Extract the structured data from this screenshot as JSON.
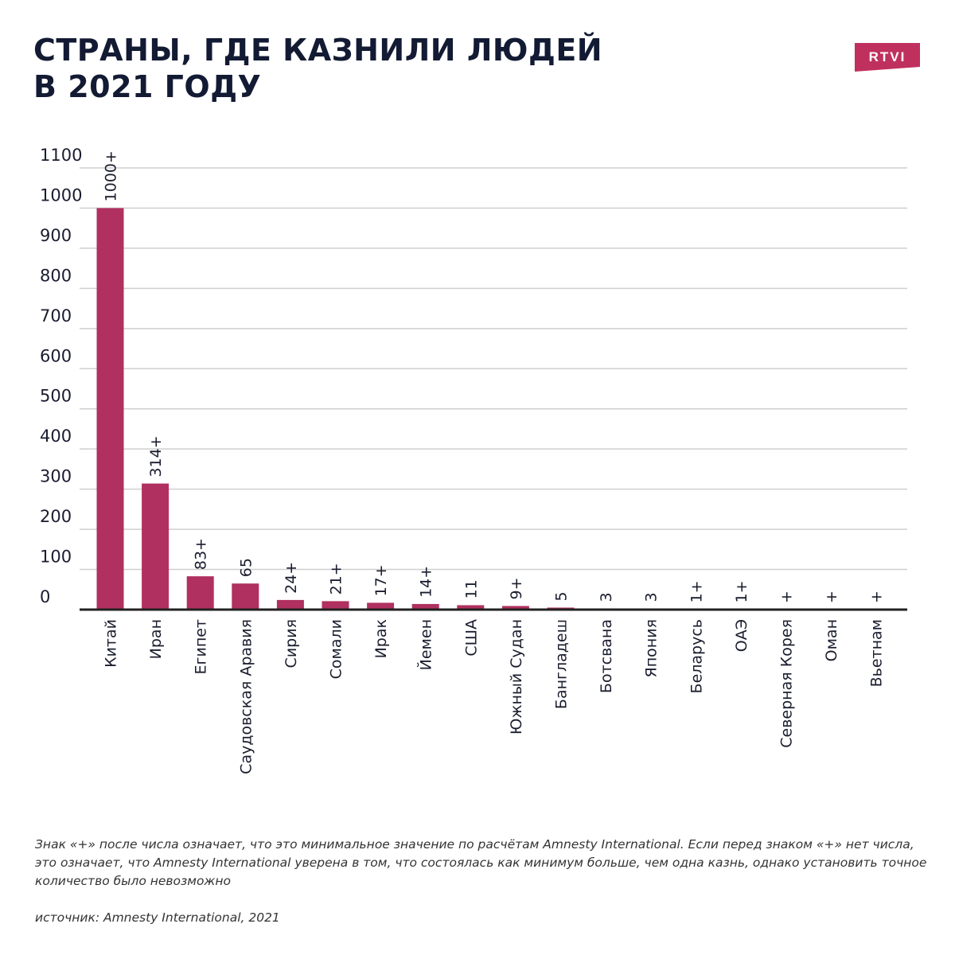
{
  "title_line1": "СТРАНЫ, ГДЕ КАЗНИЛИ ЛЮДЕЙ",
  "title_line2": "В 2021 ГОДУ",
  "logo_text": "RTVI",
  "footnote": "Знак «+» после числа означает, что это минимальное значение по расчётам Amnesty International. Если перед знаком «+» нет числа, это означает, что Amnesty International уверена в том, что состоялась как минимум больше, чем одна казнь, однако установить точное количество было невозможно",
  "source": "источник: Amnesty International, 2021",
  "colors": {
    "bar": "#b03060",
    "logo": "#c0305f",
    "grid": "#cfcfcf",
    "axis": "#222222"
  },
  "chart_data": {
    "type": "bar",
    "title": "СТРАНЫ, ГДЕ КАЗНИЛИ ЛЮДЕЙ В 2021 ГОДУ",
    "xlabel": "",
    "ylabel": "",
    "ylim": [
      0,
      1100
    ],
    "yticks": [
      0,
      100,
      200,
      300,
      400,
      500,
      600,
      700,
      800,
      900,
      1000,
      1100
    ],
    "grid": true,
    "categories": [
      "Китай",
      "Иран",
      "Египет",
      "Саудовская Аравия",
      "Сирия",
      "Сомали",
      "Ирак",
      "Йемен",
      "США",
      "Южный Судан",
      "Бангладеш",
      "Ботсвана",
      "Япония",
      "Беларусь",
      "ОАЭ",
      "Северная Корея",
      "Оман",
      "Вьетнам"
    ],
    "values": [
      1000,
      314,
      83,
      65,
      24,
      21,
      17,
      14,
      11,
      9,
      5,
      3,
      3,
      1,
      1,
      0,
      0,
      0
    ],
    "data_labels": [
      "1000+",
      "314+",
      "83+",
      "65",
      "24+",
      "21+",
      "17+",
      "14+",
      "11",
      "9+",
      "5",
      "3",
      "3",
      "1+",
      "1+",
      "+",
      "+",
      "+"
    ]
  }
}
